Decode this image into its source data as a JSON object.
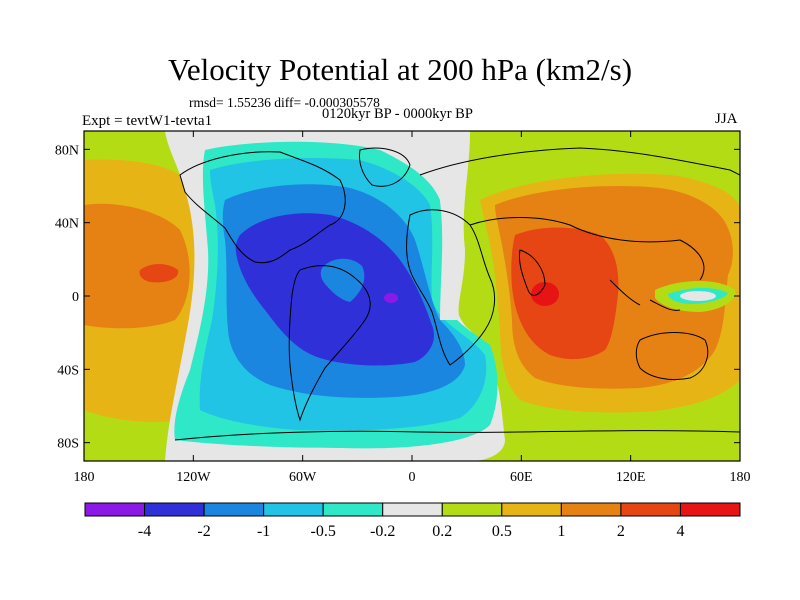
{
  "title": "Velocity Potential at 200 hPa (km2/s)",
  "stats": "rmsd= 1.55236 diff= -0.000305578",
  "subtitle": "0120kyr BP - 0000kyr BP",
  "left_label": "Expt = tevtW1-tevta1",
  "right_label": "JJA",
  "map": {
    "lon_range": [
      -180,
      180
    ],
    "lat_range": [
      -90,
      90
    ],
    "lon_ticks": [
      {
        "value": -180,
        "label": "180"
      },
      {
        "value": -120,
        "label": "120W"
      },
      {
        "value": -60,
        "label": "60W"
      },
      {
        "value": 0,
        "label": "0"
      },
      {
        "value": 60,
        "label": "60E"
      },
      {
        "value": 120,
        "label": "120E"
      },
      {
        "value": 180,
        "label": "180"
      }
    ],
    "lat_ticks": [
      {
        "value": 80,
        "label": "80N"
      },
      {
        "value": 40,
        "label": "40N"
      },
      {
        "value": 0,
        "label": "0"
      },
      {
        "value": -40,
        "label": "40S"
      },
      {
        "value": -80,
        "label": "80S"
      }
    ]
  },
  "colorbar": {
    "colors": [
      "#8b1ae6",
      "#3030d8",
      "#1a86e0",
      "#22c4e6",
      "#2ee8c8",
      "#e6e6e6",
      "#b4dc14",
      "#e6b414",
      "#e68214",
      "#e64614",
      "#e61414"
    ],
    "labels": [
      "-4",
      "-2",
      "-1",
      "-0.5",
      "-0.2",
      "0.2",
      "0.5",
      "1",
      "2",
      "4"
    ]
  },
  "colors": {
    "level_-4": "#8b1ae6",
    "level_-2": "#3030d8",
    "level_-1": "#1a86e0",
    "level_-0.5": "#22c4e6",
    "level_-0.2": "#2ee8c8",
    "level_0": "#e6e6e6",
    "level_0.2": "#b4dc14",
    "level_0.5": "#e6b414",
    "level_1": "#e68214",
    "level_2": "#e64614",
    "level_4": "#e61414"
  }
}
